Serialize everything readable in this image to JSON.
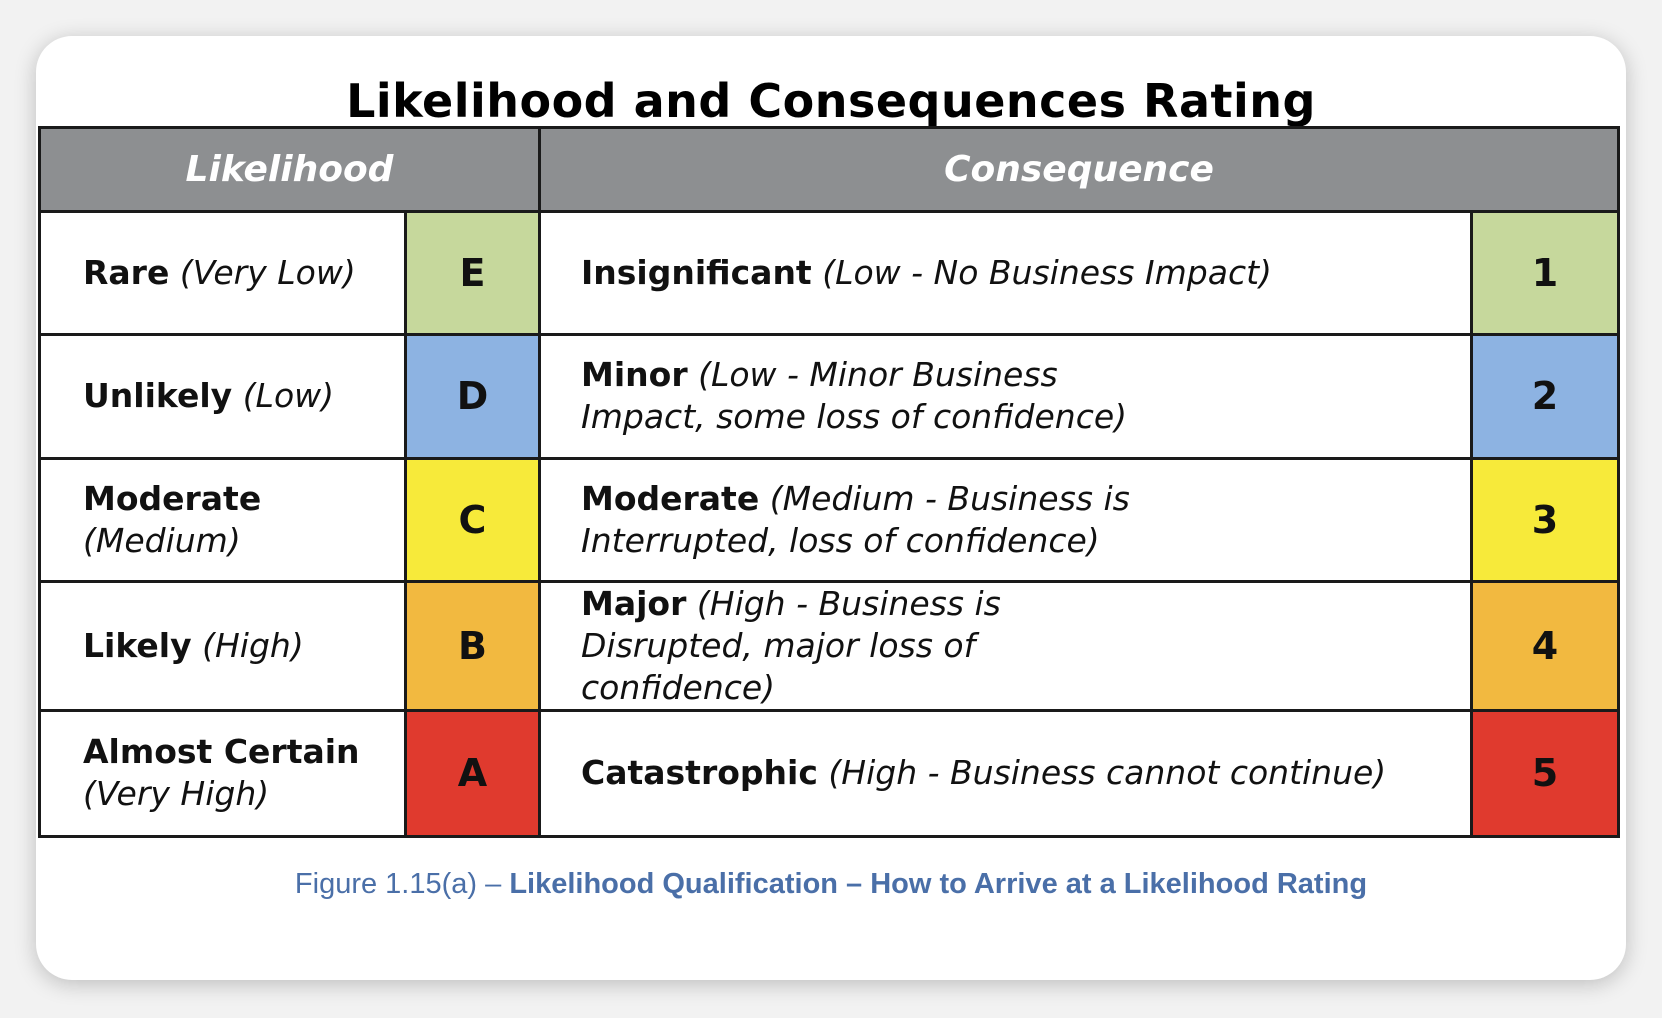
{
  "title": "Likelihood and Consequences Rating",
  "headers": {
    "likelihood": "Likelihood",
    "consequence": "Consequence"
  },
  "rows": [
    {
      "likelihood_term": "Rare",
      "likelihood_qualifier": "(Very Low)",
      "likelihood_code": "E",
      "consequence_term": "Insignificant",
      "consequence_qualifier": "(Low - No Business  Impact)",
      "consequence_code": "1",
      "color": "#c6d89c"
    },
    {
      "likelihood_term": "Unlikely",
      "likelihood_qualifier": "(Low)",
      "likelihood_code": "D",
      "consequence_term": "Minor",
      "consequence_qualifier": "(Low - Minor Business Impact, some loss of confidence)",
      "consequence_code": "2",
      "color": "#8db3e2"
    },
    {
      "likelihood_term": "Moderate",
      "likelihood_qualifier": "(Medium)",
      "likelihood_code": "C",
      "consequence_term": "Moderate",
      "consequence_qualifier": "(Medium - Business is Interrupted, loss of confidence)",
      "consequence_code": "3",
      "color": "#f7ea3a"
    },
    {
      "likelihood_term": "Likely",
      "likelihood_qualifier": "(High)",
      "likelihood_code": "B",
      "consequence_term": "Major",
      "consequence_qualifier": "(High - Business is Disrupted, major loss of confidence)",
      "consequence_code": "4",
      "color": "#f2b940"
    },
    {
      "likelihood_term": "Almost Certain",
      "likelihood_qualifier": "(Very High)",
      "likelihood_code": "A",
      "consequence_term": "Catastrophic",
      "consequence_qualifier": "(High - Business cannot  continue)",
      "consequence_code": "5",
      "color": "#e03a2e"
    }
  ],
  "caption": {
    "prefix": "Figure 1.15(a) – ",
    "bold": "Likelihood Qualification – How to Arrive at a Likelihood Rating"
  }
}
